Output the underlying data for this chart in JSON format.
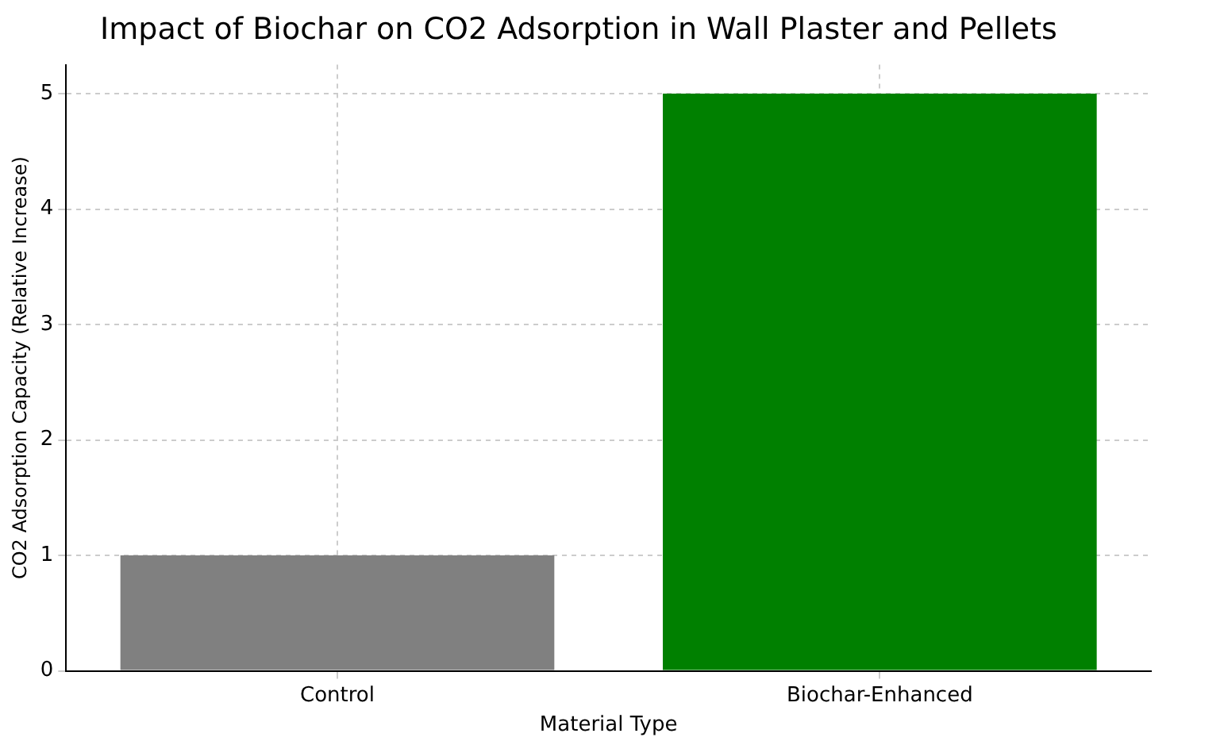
{
  "chart_data": {
    "type": "bar",
    "title": "Impact of Biochar on CO2 Adsorption in Wall Plaster and Pellets",
    "xlabel": "Material Type",
    "ylabel": "CO2 Adsorption Capacity (Relative Increase)",
    "categories": [
      "Control",
      "Biochar-Enhanced"
    ],
    "values": [
      1,
      5
    ],
    "colors": [
      "#808080",
      "#008000"
    ],
    "ylim": [
      0,
      5.25
    ],
    "yticks": [
      0,
      1,
      2,
      3,
      4,
      5
    ],
    "grid": true,
    "legend": false
  }
}
